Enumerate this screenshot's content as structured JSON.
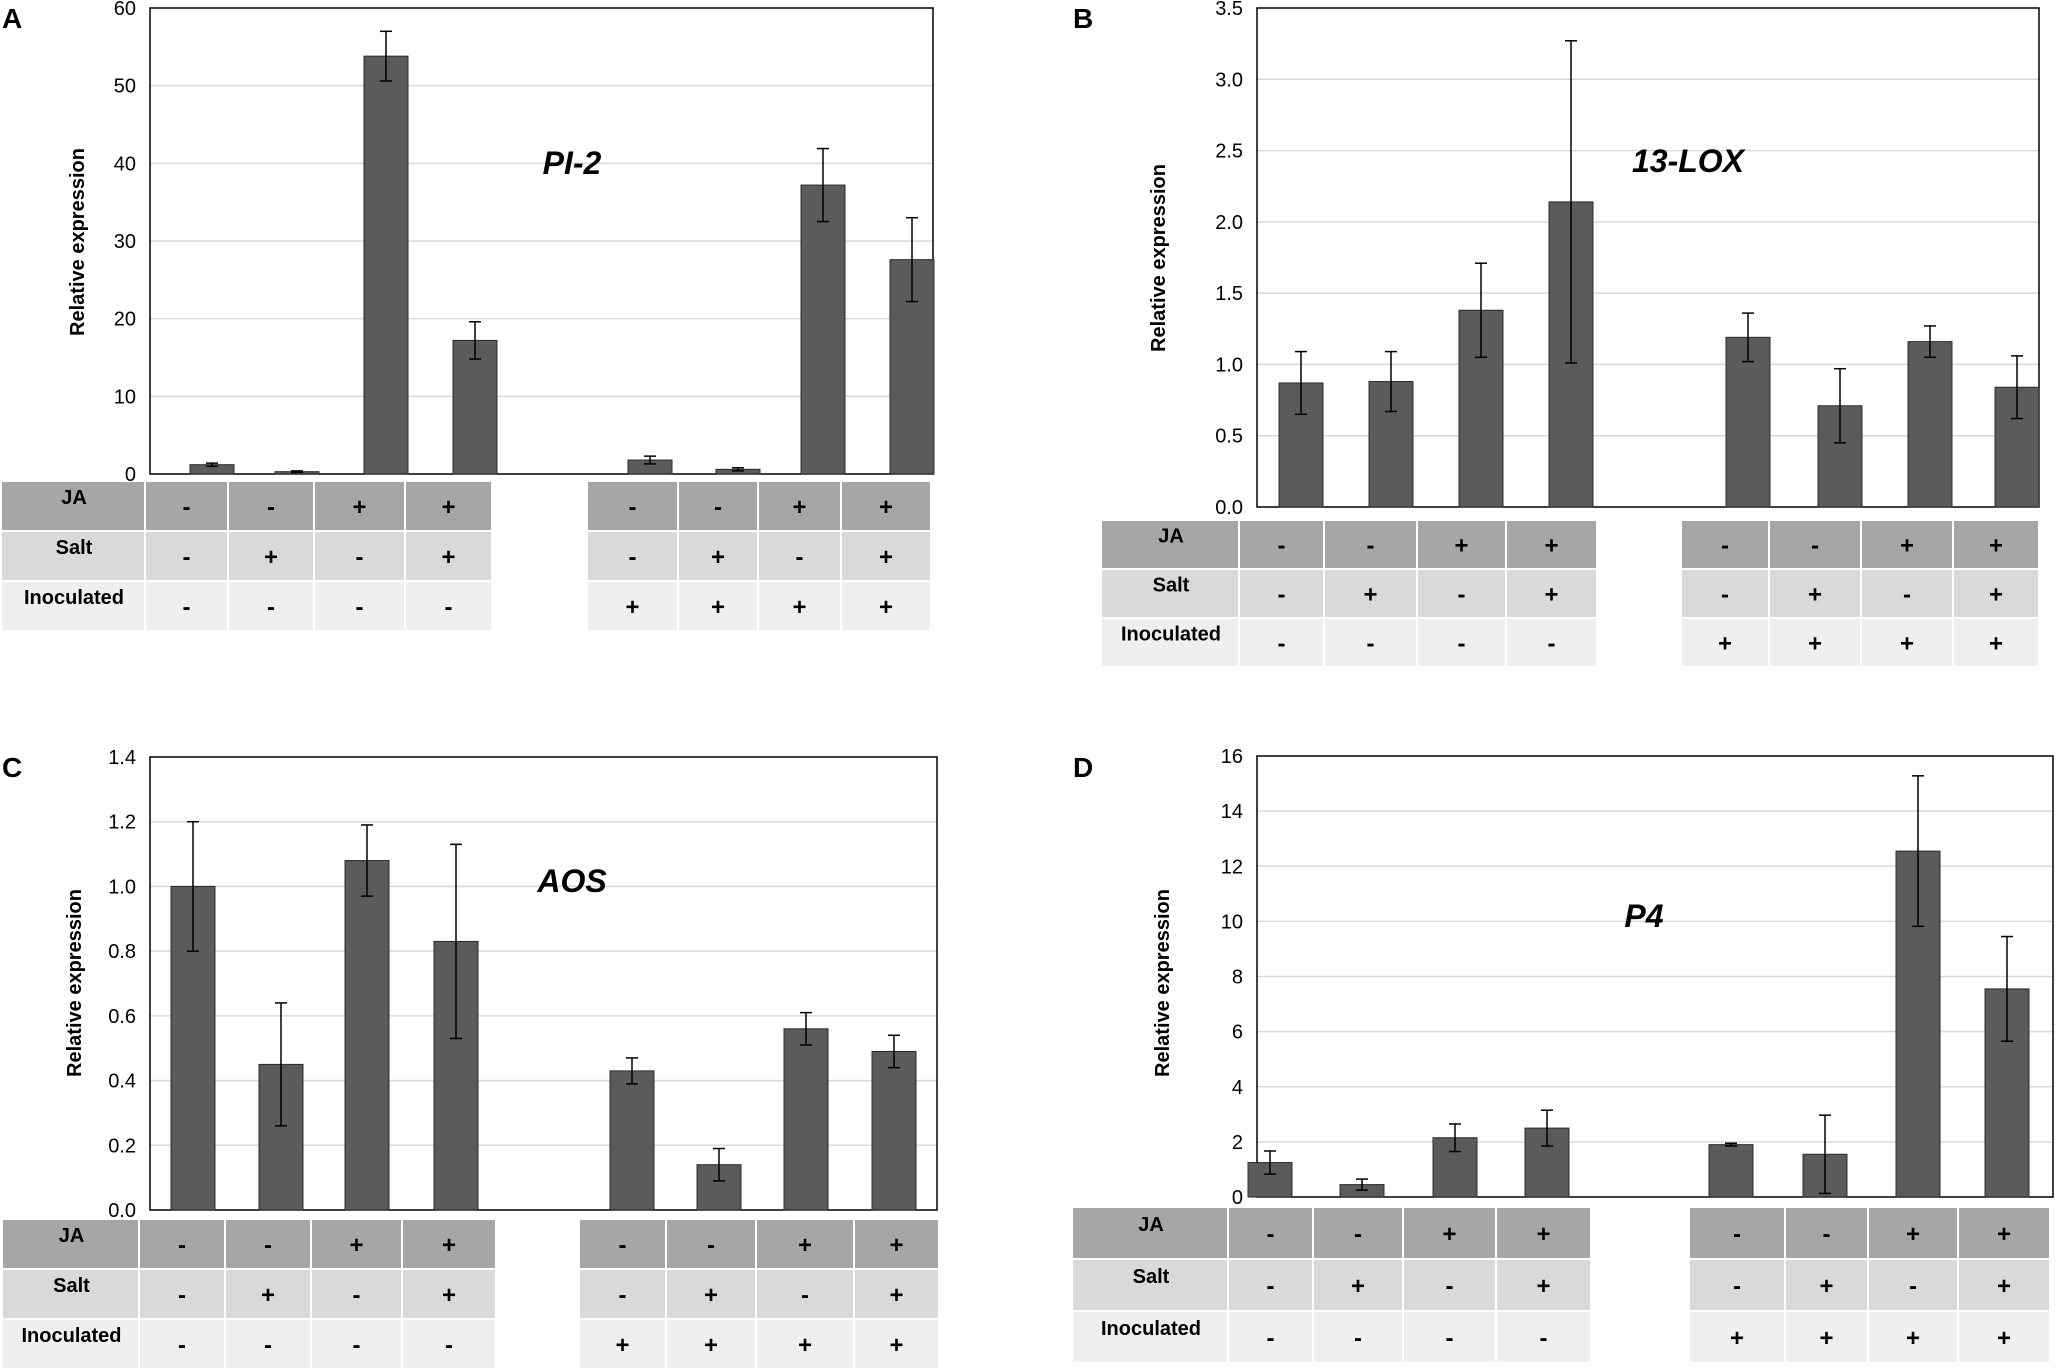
{
  "figure": {
    "colors": {
      "bar": "#5b5b5b",
      "bar_stroke": "#2b2b2b",
      "grid": "#d9d9d9",
      "frame": "#000000",
      "row_ja": "#a6a6a6",
      "row_salt": "#d9d9d9",
      "row_inoc": "#efefef"
    },
    "table_labels": [
      "JA",
      "Salt",
      "Inoculated"
    ],
    "treatments": {
      "JA": [
        "-",
        "-",
        "+",
        "+",
        "-",
        "-",
        "+",
        "+"
      ],
      "Salt": [
        "-",
        "+",
        "-",
        "+",
        "-",
        "+",
        "-",
        "+"
      ],
      "Inoculated": [
        "-",
        "-",
        "-",
        "-",
        "+",
        "+",
        "+",
        "+"
      ]
    }
  },
  "chart_data": [
    {
      "panel": "A",
      "type": "bar",
      "title": "PI-2",
      "ylabel": "Relative expression",
      "ylim": [
        0,
        60
      ],
      "yticks": [
        "0",
        "10",
        "20",
        "30",
        "40",
        "50",
        "60"
      ],
      "values": [
        1.2,
        0.3,
        53.8,
        17.2,
        1.8,
        0.6,
        37.2,
        27.6
      ],
      "errors": [
        0.2,
        0.1,
        3.2,
        2.4,
        0.5,
        0.2,
        4.7,
        5.4
      ]
    },
    {
      "panel": "B",
      "type": "bar",
      "title": "13-LOX",
      "ylabel": "Relative expression",
      "ylim": [
        0,
        3.5
      ],
      "yticks": [
        "0.0",
        "0.5",
        "1.0",
        "1.5",
        "2.0",
        "2.5",
        "3.0",
        "3.5"
      ],
      "values": [
        0.87,
        0.88,
        1.38,
        2.14,
        1.19,
        0.71,
        1.16,
        0.84
      ],
      "errors": [
        0.22,
        0.21,
        0.33,
        1.13,
        0.17,
        0.26,
        0.11,
        0.22
      ]
    },
    {
      "panel": "C",
      "type": "bar",
      "title": "AOS",
      "ylabel": "Relative expression",
      "ylim": [
        0,
        1.4
      ],
      "yticks": [
        "0.0",
        "0.2",
        "0.4",
        "0.6",
        "0.8",
        "1.0",
        "1.2",
        "1.4"
      ],
      "values": [
        1.0,
        0.45,
        1.08,
        0.83,
        0.43,
        0.14,
        0.56,
        0.49
      ],
      "errors": [
        0.2,
        0.19,
        0.11,
        0.3,
        0.04,
        0.05,
        0.05,
        0.05
      ]
    },
    {
      "panel": "D",
      "type": "bar",
      "title": "P4",
      "ylabel": "Relative expression",
      "ylim": [
        0,
        16
      ],
      "yticks": [
        "0",
        "2",
        "4",
        "6",
        "8",
        "10",
        "12",
        "14",
        "16"
      ],
      "values": [
        1.25,
        0.45,
        2.15,
        2.5,
        1.9,
        1.55,
        12.55,
        7.55
      ],
      "errors": [
        0.42,
        0.2,
        0.5,
        0.65,
        0.05,
        1.42,
        2.73,
        1.9
      ]
    }
  ]
}
